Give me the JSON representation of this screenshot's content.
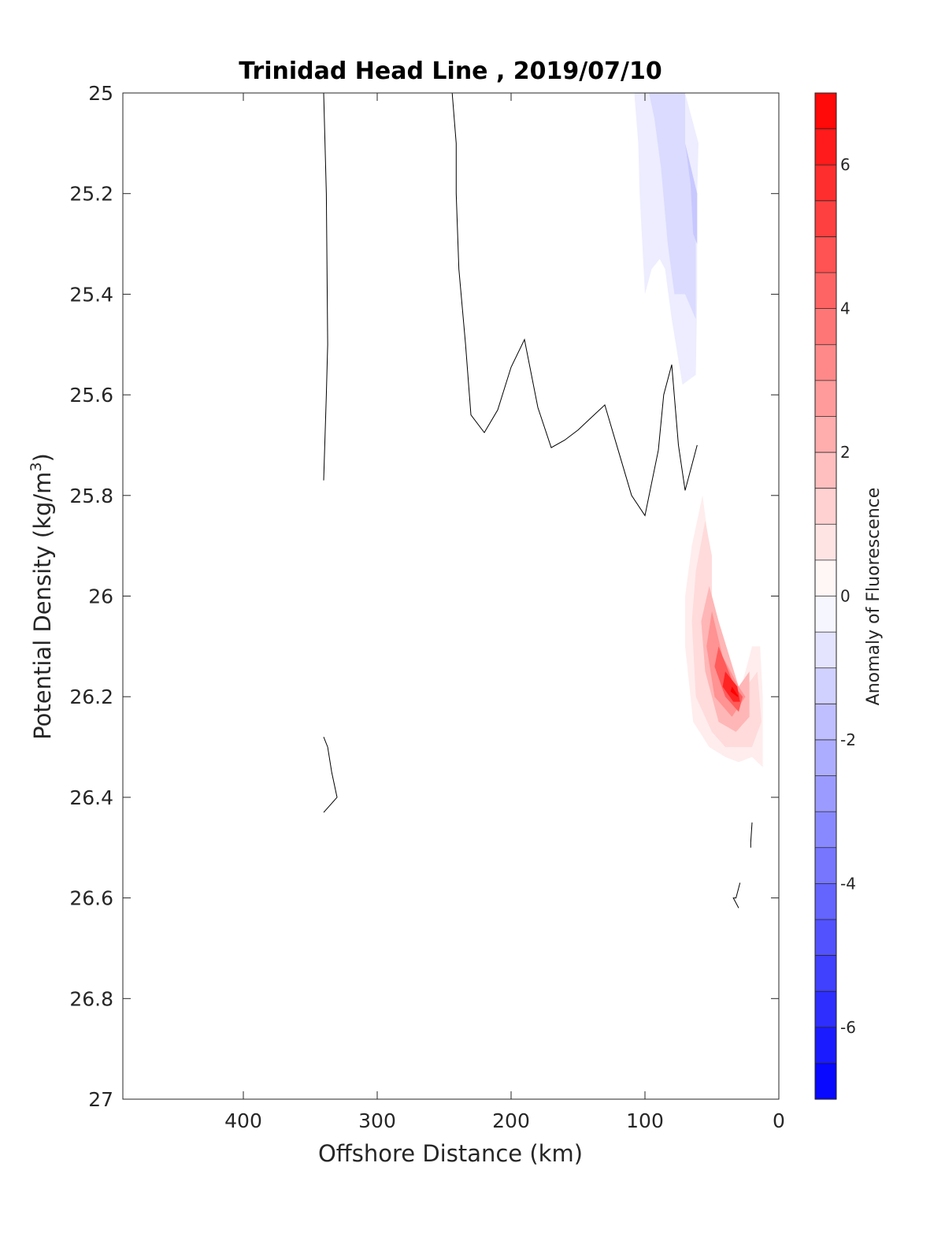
{
  "chart_data": {
    "type": "contour",
    "title": "Trinidad Head Line , 2019/07/10",
    "xlabel": "Offshore Distance (km)",
    "ylabel": "Potential Density (kg/m",
    "ylabel_superscript": "3",
    "ylabel_suffix": ")",
    "xlim": [
      490,
      0
    ],
    "ylim": [
      25,
      27
    ],
    "y_reversed": true,
    "x_ticks": [
      400,
      300,
      200,
      100,
      0
    ],
    "y_ticks": [
      25,
      25.2,
      25.4,
      25.6,
      25.8,
      26,
      26.2,
      26.4,
      26.6,
      26.8,
      27
    ],
    "y_tick_labels": [
      "25",
      "25.2",
      "25.4",
      "25.6",
      "25.8",
      "26",
      "26.2",
      "26.4",
      "26.6",
      "26.8",
      "27"
    ],
    "grid": false,
    "colorbar": {
      "label": "Anomaly of Fluorescence",
      "range": [
        -7,
        7
      ],
      "step": 0.5,
      "ticks": [
        6,
        4,
        2,
        0,
        -2,
        -4,
        -6
      ],
      "tick_labels": [
        "6",
        "4",
        "2",
        "0",
        "-2",
        "-4",
        "-6"
      ],
      "high_color": "#ff0000",
      "zero_color": "#ffffff",
      "low_color": "#0000ff"
    },
    "zero_contour_lines": [
      [
        [
          340,
          25
        ],
        [
          338,
          25.2
        ],
        [
          337,
          25.5
        ],
        [
          338,
          25.6
        ],
        [
          340,
          25.77
        ]
      ],
      [
        [
          244,
          25
        ],
        [
          241,
          25.1
        ],
        [
          241,
          25.2
        ],
        [
          239,
          25.35
        ],
        [
          234,
          25.5
        ],
        [
          230,
          25.64
        ],
        [
          220,
          25.675
        ],
        [
          210,
          25.63
        ],
        [
          200,
          25.545
        ],
        [
          190,
          25.49
        ],
        [
          180,
          25.625
        ],
        [
          170,
          25.705
        ],
        [
          160,
          25.69
        ],
        [
          150,
          25.67
        ],
        [
          140,
          25.645
        ],
        [
          130,
          25.62
        ],
        [
          120,
          25.71
        ],
        [
          110,
          25.8
        ],
        [
          100,
          25.84
        ],
        [
          90,
          25.71
        ],
        [
          86,
          25.6
        ],
        [
          80,
          25.54
        ],
        [
          75,
          25.7
        ],
        [
          70,
          25.79
        ],
        [
          65,
          25.74
        ],
        [
          61,
          25.7
        ]
      ],
      [
        [
          340,
          26.28
        ],
        [
          337,
          26.3
        ],
        [
          334,
          26.35
        ],
        [
          330,
          26.4
        ],
        [
          340,
          26.43
        ]
      ],
      [
        [
          20,
          26.45
        ],
        [
          21,
          26.49
        ],
        [
          21,
          26.5
        ]
      ],
      [
        [
          29,
          26.57
        ],
        [
          32,
          26.6
        ],
        [
          34,
          26.6
        ],
        [
          30,
          26.62
        ]
      ]
    ],
    "anomaly_regions": [
      {
        "value": -0.5,
        "polygon": [
          [
            108,
            25
          ],
          [
            105,
            25.1
          ],
          [
            104,
            25.2
          ],
          [
            102,
            25.3
          ],
          [
            100,
            25.4
          ],
          [
            95,
            25.35
          ],
          [
            89,
            25.33
          ],
          [
            85,
            25.35
          ],
          [
            80,
            25.45
          ],
          [
            72,
            25.58
          ],
          [
            62,
            25.56
          ],
          [
            61,
            25.4
          ],
          [
            61,
            25.2
          ],
          [
            60,
            25.1
          ],
          [
            70,
            25.0
          ]
        ]
      },
      {
        "value": -1.0,
        "polygon": [
          [
            97,
            25
          ],
          [
            93,
            25.05
          ],
          [
            88,
            25.15
          ],
          [
            83,
            25.3
          ],
          [
            78,
            25.4
          ],
          [
            70,
            25.4
          ],
          [
            62,
            25.45
          ],
          [
            62,
            25.3
          ],
          [
            61,
            25.2
          ],
          [
            70,
            25.1
          ],
          [
            70,
            25.0
          ]
        ]
      },
      {
        "value": -1.5,
        "polygon": [
          [
            70,
            25.1
          ],
          [
            66,
            25.18
          ],
          [
            64,
            25.28
          ],
          [
            61,
            25.3
          ],
          [
            61,
            25.2
          ]
        ]
      },
      {
        "value": 0.5,
        "polygon": [
          [
            57,
            25.8
          ],
          [
            65,
            25.9
          ],
          [
            70,
            26.0
          ],
          [
            70,
            26.1
          ],
          [
            64,
            26.25
          ],
          [
            52,
            26.3
          ],
          [
            40,
            26.32
          ],
          [
            30,
            26.33
          ],
          [
            20,
            26.32
          ],
          [
            12,
            26.34
          ],
          [
            12,
            26.2
          ],
          [
            14,
            26.1
          ],
          [
            20,
            26.1
          ],
          [
            30,
            26.2
          ],
          [
            52,
            26.0
          ],
          [
            52,
            25.9
          ]
        ]
      },
      {
        "value": 1.0,
        "polygon": [
          [
            55,
            25.85
          ],
          [
            62,
            25.95
          ],
          [
            65,
            26.05
          ],
          [
            62,
            26.2
          ],
          [
            50,
            26.27
          ],
          [
            40,
            26.3
          ],
          [
            30,
            26.3
          ],
          [
            20,
            26.3
          ],
          [
            13,
            26.25
          ],
          [
            16,
            26.15
          ],
          [
            30,
            26.2
          ],
          [
            50,
            26.0
          ],
          [
            50,
            25.92
          ]
        ]
      },
      {
        "value": 2.0,
        "polygon": [
          [
            52,
            25.98
          ],
          [
            58,
            26.05
          ],
          [
            55,
            26.15
          ],
          [
            45,
            26.25
          ],
          [
            32,
            26.27
          ],
          [
            22,
            26.24
          ],
          [
            22,
            26.15
          ],
          [
            30,
            26.18
          ],
          [
            45,
            26.05
          ]
        ]
      },
      {
        "value": 3.0,
        "polygon": [
          [
            50,
            26.03
          ],
          [
            54,
            26.1
          ],
          [
            48,
            26.2
          ],
          [
            35,
            26.24
          ],
          [
            25,
            26.2
          ],
          [
            30,
            26.18
          ],
          [
            42,
            26.12
          ]
        ]
      },
      {
        "value": 4.5,
        "polygon": [
          [
            45,
            26.1
          ],
          [
            48,
            26.14
          ],
          [
            40,
            26.2
          ],
          [
            30,
            26.23
          ],
          [
            27,
            26.2
          ],
          [
            33,
            26.18
          ]
        ]
      },
      {
        "value": 6.0,
        "polygon": [
          [
            40,
            26.15
          ],
          [
            42,
            26.18
          ],
          [
            34,
            26.21
          ],
          [
            29,
            26.21
          ],
          [
            31,
            26.18
          ]
        ]
      },
      {
        "value": 7.0,
        "polygon": [
          [
            35,
            26.18
          ],
          [
            36,
            26.19
          ],
          [
            31,
            26.2
          ],
          [
            30,
            26.2
          ]
        ]
      }
    ]
  }
}
